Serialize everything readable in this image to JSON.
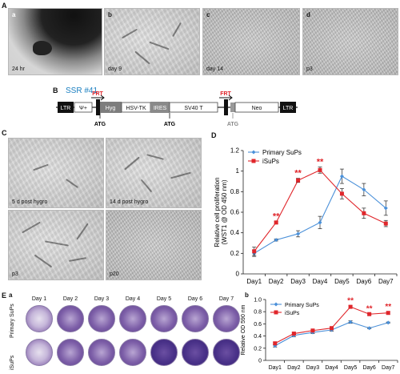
{
  "panel_A": {
    "label": "A",
    "images": [
      {
        "tag": "a",
        "caption": "24 hr"
      },
      {
        "tag": "b",
        "caption": "day 9"
      },
      {
        "tag": "c",
        "caption": "day 14"
      },
      {
        "tag": "d",
        "caption": "p3"
      }
    ]
  },
  "panel_B": {
    "label": "B",
    "title": "SSR #41",
    "segments": [
      "LTR",
      "Ψ+",
      "Hyg",
      "HSV-TK",
      "IRES",
      "SV40 T",
      "Neo",
      "LTR"
    ],
    "frt": [
      "FRT",
      "FRT"
    ],
    "atg": [
      "ATG",
      "ATG",
      "ATG"
    ]
  },
  "panel_C": {
    "label": "C",
    "images": [
      {
        "caption": "5 d post hygro"
      },
      {
        "caption": "14 d post hygro"
      },
      {
        "caption": "p3"
      },
      {
        "caption": "p20"
      }
    ]
  },
  "panel_D": {
    "label": "D"
  },
  "panel_E": {
    "label": "E",
    "sub_a": "a",
    "sub_b": "b",
    "row_labels": [
      "Primary SuPs",
      "iSuPs"
    ],
    "days": [
      "Day 1",
      "Day 2",
      "Day 3",
      "Day 4",
      "Day 5",
      "Day 6",
      "Day 7"
    ]
  },
  "colors": {
    "primary": "#4a90d9",
    "isups": "#e0262b"
  },
  "chart_data": [
    {
      "type": "line",
      "x": [
        "Day1",
        "Day2",
        "Day3",
        "Day4",
        "Day5",
        "Day6",
        "Day7"
      ],
      "ylabel": "Relative cell proliferation\n(WST1 @ OD 450 nm)",
      "xlabel": "",
      "ylim": [
        0,
        1.2
      ],
      "yticks": [
        "0",
        "0.2",
        "0.4",
        "0.6",
        "0.8",
        "1",
        "1.2"
      ],
      "legend_position": "top-left",
      "series": [
        {
          "name": "Primary SuPs",
          "values": [
            0.2,
            0.33,
            0.39,
            0.5,
            0.95,
            0.82,
            0.64
          ],
          "errors": [
            0.03,
            0.01,
            0.03,
            0.06,
            0.07,
            0.06,
            0.07
          ]
        },
        {
          "name": "iSuPs",
          "values": [
            0.22,
            0.5,
            0.91,
            1.01,
            0.78,
            0.59,
            0.49
          ],
          "errors": [
            0.04,
            0.01,
            0.02,
            0.03,
            0.05,
            0.05,
            0.03
          ]
        }
      ],
      "significance": [
        {
          "x": "Day2",
          "text": "**"
        },
        {
          "x": "Day3",
          "text": "**"
        },
        {
          "x": "Day4",
          "text": "**"
        }
      ]
    },
    {
      "type": "line",
      "x": [
        "Day1",
        "Day2",
        "Day3",
        "Day4",
        "Day5",
        "Day6",
        "Day7"
      ],
      "ylabel": "Relative OD 590 nm",
      "xlabel": "",
      "ylim": [
        0,
        1
      ],
      "yticks": [
        "0",
        "0.2",
        "0.4",
        "0.6",
        "0.8",
        "1.0"
      ],
      "legend_position": "top-left",
      "series": [
        {
          "name": "Primary SuPs",
          "values": [
            0.24,
            0.41,
            0.46,
            0.5,
            0.63,
            0.53,
            0.62
          ],
          "errors": [
            0.02,
            0.02,
            0.02,
            0.02,
            0.02,
            0.01,
            0.01
          ]
        },
        {
          "name": "iSuPs",
          "values": [
            0.28,
            0.44,
            0.49,
            0.53,
            0.88,
            0.76,
            0.78
          ],
          "errors": [
            0.02,
            0.02,
            0.02,
            0.02,
            0.02,
            0.01,
            0.02
          ]
        }
      ],
      "significance": [
        {
          "x": "Day5",
          "text": "**"
        },
        {
          "x": "Day6",
          "text": "**"
        },
        {
          "x": "Day7",
          "text": "**"
        }
      ]
    }
  ]
}
